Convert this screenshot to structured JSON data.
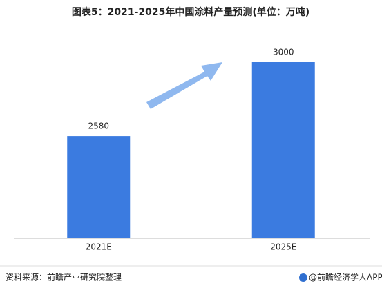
{
  "chart_data": {
    "type": "bar",
    "title": "图表5：2021-2025年中国涂料产量预测(单位：万吨)",
    "categories": [
      "2021E",
      "2025E"
    ],
    "values": [
      2580,
      3000
    ],
    "color": "#3b7be0",
    "ylim": [
      2000,
      3200
    ],
    "source": "资料来源：前瞻产业研究院整理",
    "brand": "@前瞻经济学人APP"
  }
}
